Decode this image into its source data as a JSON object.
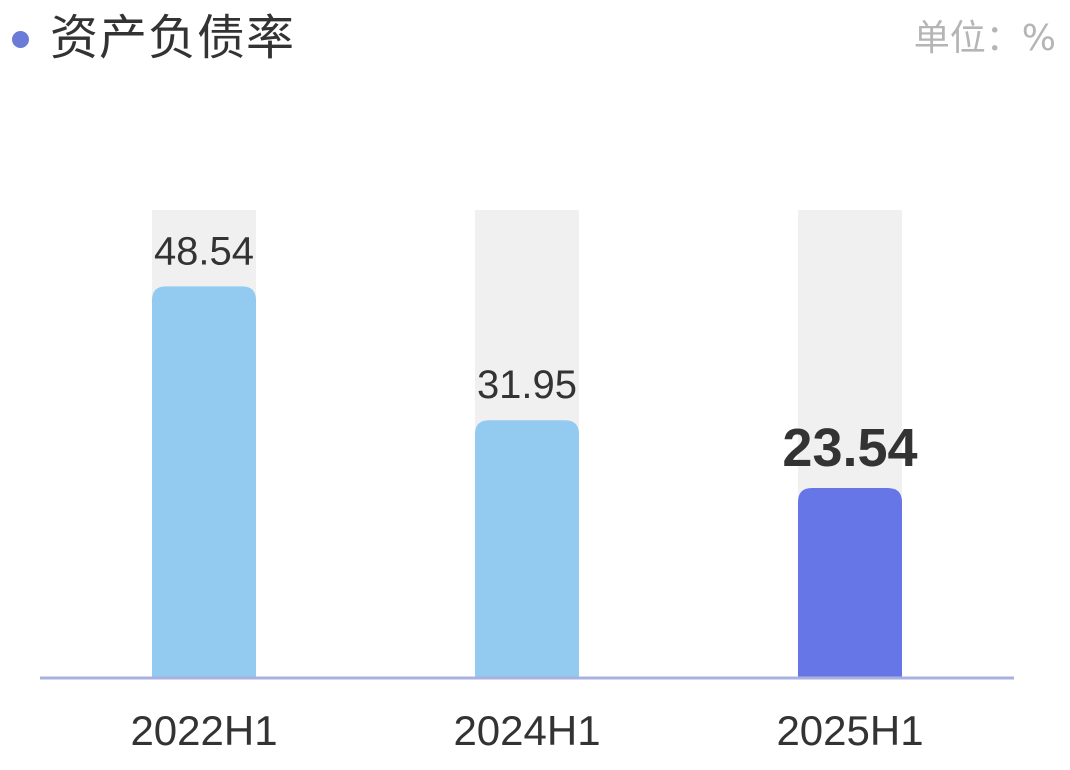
{
  "header": {
    "title": "资产负债率",
    "unit": "单位：%"
  },
  "colors": {
    "accent_dot": "#6a7bd8",
    "bar_normal": "#93caef",
    "bar_highlight": "#6776e6",
    "track": "#f0f0f0",
    "axis": "#a9b1e0"
  },
  "chart_data": {
    "type": "bar",
    "title": "资产负债率",
    "unit": "单位：%",
    "categories": [
      "2022H1",
      "2024H1",
      "2025H1"
    ],
    "values": [
      48.54,
      31.95,
      23.54
    ],
    "value_labels": [
      "48.54",
      "31.95",
      "23.54"
    ],
    "highlight_index": 2,
    "ylim": [
      0,
      58
    ],
    "grid": false,
    "legend": "none"
  }
}
